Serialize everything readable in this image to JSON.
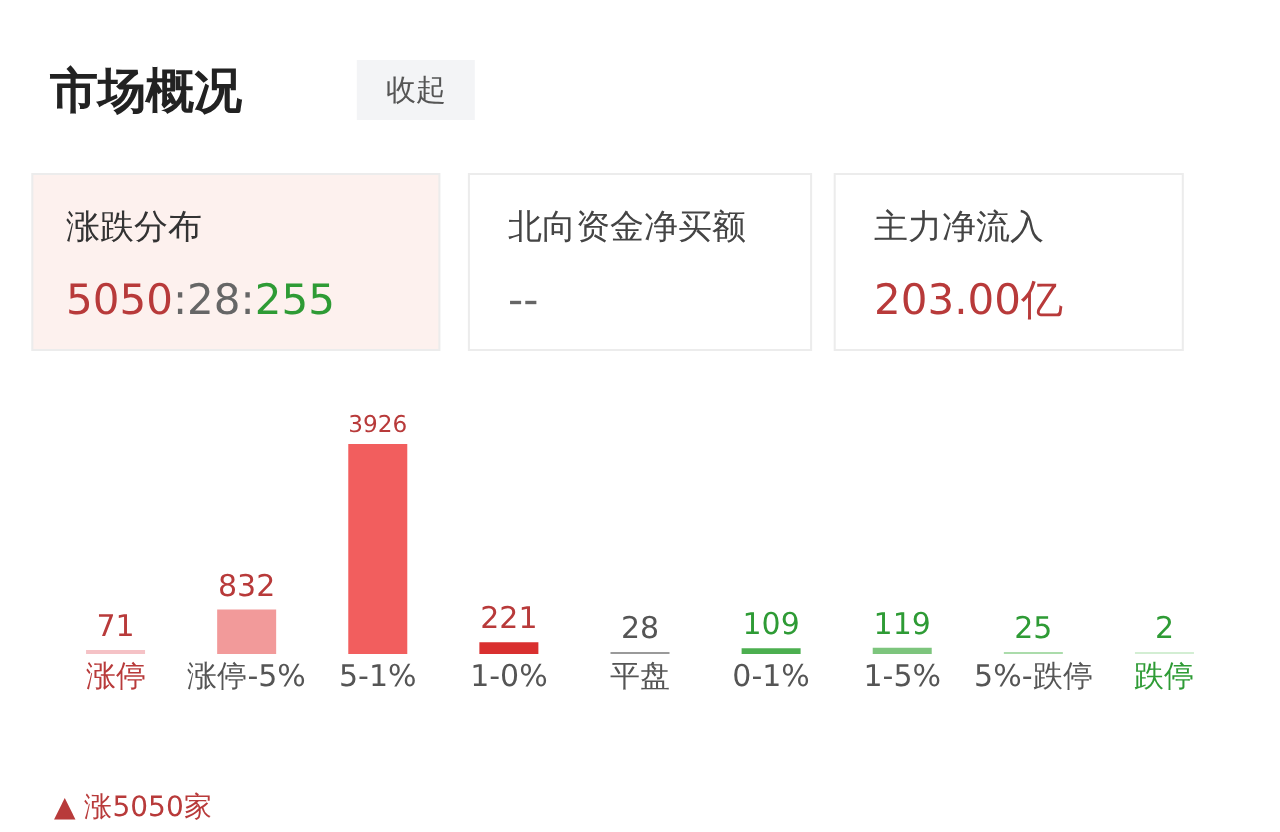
{
  "chart_data": {
    "type": "bar",
    "title": "市场概况",
    "categories": [
      "涨停",
      "涨停-5%",
      "5-1%",
      "1-0%",
      "平盘",
      "0-1%",
      "1-5%",
      "5%-跌停",
      "跌停"
    ],
    "values": [
      71,
      832,
      3926,
      221,
      28,
      109,
      119,
      25,
      2
    ],
    "colors": [
      "#f5c2c6",
      "#f29a9a",
      "#f25e5e",
      "#d9302f",
      "#9a9a9a",
      "#4caf50",
      "#7dc57d",
      "#abdcab",
      "#d3eed3"
    ],
    "ylim": [
      0,
      3926
    ],
    "data_labels": true,
    "tick_labels": "x",
    "legend": false,
    "annotations": [
      "收起",
      "涨跌分布",
      "5050:28:255",
      "北向资金净买额",
      "--",
      "主力净流入",
      "203.00亿",
      "▲ 涨5050家"
    ]
  }
}
